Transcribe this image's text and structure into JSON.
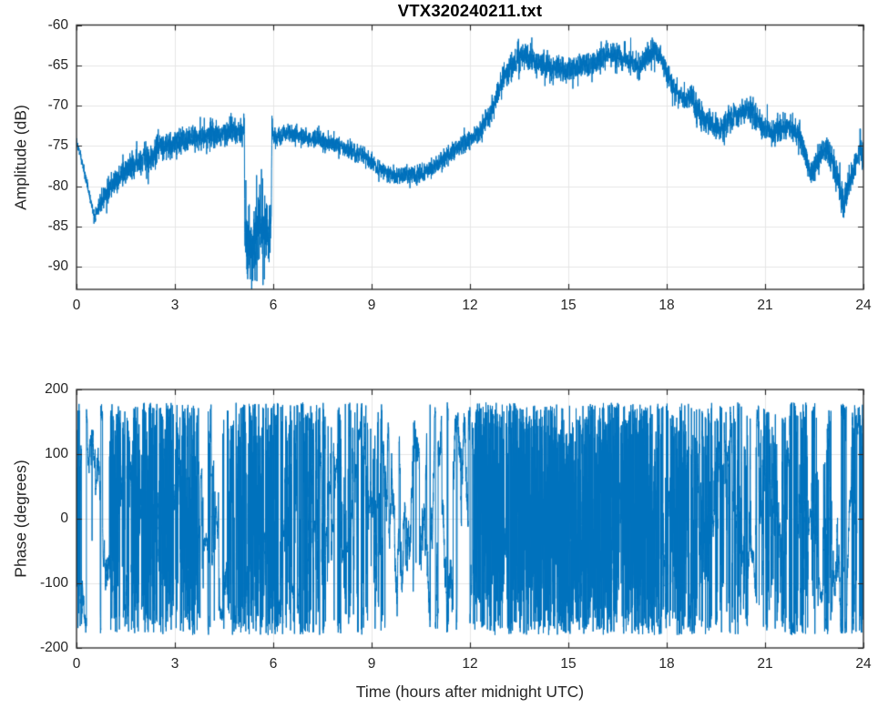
{
  "figure": {
    "background": "#ffffff",
    "axis_color": "#262626",
    "grid_color": "#e6e6e6",
    "tick_label_color": "#262626"
  },
  "chart_data": [
    {
      "type": "line",
      "title": "VTX320240211.txt",
      "xlabel": "",
      "ylabel": "Amplitude (dB)",
      "xlim": [
        0,
        24
      ],
      "ylim": [
        -92.8,
        -60
      ],
      "xticks": [
        0,
        3,
        6,
        9,
        12,
        15,
        18,
        21,
        24
      ],
      "yticks": [
        -90,
        -85,
        -80,
        -75,
        -70,
        -65,
        -60
      ],
      "grid": true,
      "legend": "none",
      "line_color": "#0072BD",
      "series": [
        {
          "name": "amplitude",
          "samples": 6000,
          "envelope": [
            [
              0,
              -74.5
            ],
            [
              0.15,
              -76.5
            ],
            [
              0.35,
              -80.2
            ],
            [
              0.55,
              -84.0
            ],
            [
              0.75,
              -82.0
            ],
            [
              1.0,
              -80.2
            ],
            [
              1.3,
              -78.9
            ],
            [
              1.65,
              -77.8
            ],
            [
              2.0,
              -76.8
            ],
            [
              2.35,
              -76.0
            ],
            [
              2.7,
              -74.9
            ],
            [
              3.1,
              -74.5
            ],
            [
              3.5,
              -74.1
            ],
            [
              4.0,
              -73.8
            ],
            [
              4.5,
              -73.6
            ],
            [
              5.09,
              -73.3
            ],
            [
              5.105,
              -71.4
            ],
            [
              5.12,
              -73.5
            ],
            [
              5.135,
              -86.0
            ],
            [
              5.3,
              -87.6
            ],
            [
              5.5,
              -87.0
            ],
            [
              5.62,
              -84.6
            ],
            [
              5.8,
              -85.2
            ],
            [
              5.94,
              -84.5
            ],
            [
              5.96,
              -72.6
            ],
            [
              6.02,
              -74.0
            ],
            [
              6.5,
              -73.4
            ],
            [
              7.0,
              -73.9
            ],
            [
              7.5,
              -74.3
            ],
            [
              8.1,
              -75.1
            ],
            [
              8.7,
              -76.1
            ],
            [
              9.2,
              -77.8
            ],
            [
              9.8,
              -78.8
            ],
            [
              10.3,
              -78.6
            ],
            [
              10.85,
              -77.9
            ],
            [
              11.4,
              -75.9
            ],
            [
              11.8,
              -74.7
            ],
            [
              12.1,
              -74.1
            ],
            [
              12.35,
              -73.0
            ],
            [
              12.55,
              -71.5
            ],
            [
              12.75,
              -69.6
            ],
            [
              12.9,
              -67.8
            ],
            [
              13.1,
              -66.0
            ],
            [
              13.3,
              -64.8
            ],
            [
              13.55,
              -63.9
            ],
            [
              13.8,
              -64.2
            ],
            [
              14.0,
              -64.5
            ],
            [
              14.5,
              -65.3
            ],
            [
              15.05,
              -65.6
            ],
            [
              15.6,
              -65.0
            ],
            [
              16.15,
              -64.0
            ],
            [
              16.45,
              -63.6
            ],
            [
              16.8,
              -64.4
            ],
            [
              17.15,
              -65.2
            ],
            [
              17.4,
              -63.9
            ],
            [
              17.65,
              -63.3
            ],
            [
              17.8,
              -63.8
            ],
            [
              18.0,
              -66.0
            ],
            [
              18.3,
              -68.3
            ],
            [
              18.55,
              -69.3
            ],
            [
              18.75,
              -68.9
            ],
            [
              19.0,
              -71.0
            ],
            [
              19.3,
              -72.2
            ],
            [
              19.6,
              -73.0
            ],
            [
              19.9,
              -71.7
            ],
            [
              20.2,
              -70.9
            ],
            [
              20.45,
              -70.6
            ],
            [
              20.7,
              -71.3
            ],
            [
              21.0,
              -72.6
            ],
            [
              21.2,
              -73.4
            ],
            [
              21.45,
              -72.7
            ],
            [
              21.7,
              -72.5
            ],
            [
              21.9,
              -73.1
            ],
            [
              22.1,
              -74.3
            ],
            [
              22.4,
              -78.8
            ],
            [
              22.65,
              -76.6
            ],
            [
              22.85,
              -75.2
            ],
            [
              23.05,
              -76.6
            ],
            [
              23.2,
              -79.3
            ],
            [
              23.4,
              -82.4
            ],
            [
              23.6,
              -79.2
            ],
            [
              23.8,
              -76.4
            ],
            [
              23.92,
              -74.9
            ],
            [
              24,
              -77.2
            ]
          ],
          "noise_halfwidth": [
            [
              0,
              0.35
            ],
            [
              0.5,
              0.3
            ],
            [
              0.9,
              0.75
            ],
            [
              2.5,
              0.85
            ],
            [
              5.05,
              0.8
            ],
            [
              5.1,
              0.5
            ],
            [
              5.15,
              2.7
            ],
            [
              5.9,
              2.3
            ],
            [
              5.96,
              0.6
            ],
            [
              6.1,
              0.55
            ],
            [
              12.3,
              0.6
            ],
            [
              13.2,
              0.85
            ],
            [
              17.9,
              0.75
            ],
            [
              19,
              0.8
            ],
            [
              21.9,
              0.85
            ],
            [
              22.6,
              0.8
            ],
            [
              23.3,
              1.0
            ],
            [
              24,
              0.9
            ]
          ],
          "spikes": [
            {
              "t0": 0.9,
              "t1": 5.1,
              "p": 0.012,
              "amp": [
                0.8,
                2.3
              ]
            },
            {
              "t0": 0.9,
              "t1": 5.1,
              "p": 0.004,
              "amp": [
                -1.3,
                -0.5
              ]
            },
            {
              "t0": 6.1,
              "t1": 12.3,
              "p": 0.006,
              "amp": [
                0.4,
                1.2
              ]
            },
            {
              "t0": 13.2,
              "t1": 17.9,
              "p": 0.009,
              "amp": [
                0.6,
                1.6
              ]
            },
            {
              "t0": 13.2,
              "t1": 17.9,
              "p": 0.009,
              "amp": [
                -1.6,
                -0.6
              ]
            },
            {
              "t0": 19.8,
              "t1": 22.0,
              "p": 0.016,
              "amp": [
                0.8,
                2.2
              ]
            },
            {
              "t0": 22.0,
              "t1": 24.0,
              "p": 0.012,
              "amp": [
                0.6,
                1.8
              ]
            }
          ],
          "notes": "Noisy received-signal amplitude; deep dropout 5.1-5.95 h to ~-87 dB (min ~-91.5); high plateau ~-64 dB from 13-18 h; dips to ~-79 dB at 22.4 h and ~-82.5 dB at 23.4 h"
        }
      ]
    },
    {
      "type": "line",
      "title": "",
      "xlabel": "Time (hours after midnight UTC)",
      "ylabel": "Phase (degrees)",
      "xlim": [
        0,
        24
      ],
      "ylim": [
        -200,
        200
      ],
      "xticks": [
        0,
        3,
        6,
        9,
        12,
        15,
        18,
        21,
        24
      ],
      "yticks": [
        -200,
        -100,
        0,
        100,
        200
      ],
      "grid": true,
      "legend": "none",
      "line_color": "#0072BD",
      "series": [
        {
          "name": "phase",
          "samples": 9000,
          "wrap_range": [
            -180,
            180
          ],
          "segments": [
            {
              "t0": 0.0,
              "t1": 0.12,
              "sigma": 130,
              "gap": 0.0,
              "drift": 0,
              "burst": 0
            },
            {
              "t0": 0.12,
              "t1": 1.0,
              "sigma": 9,
              "gap": 0.0,
              "drift": -380,
              "burst": 0.004
            },
            {
              "t0": 1.0,
              "t1": 3.65,
              "sigma": 120,
              "gap": 0.12,
              "drift": 0,
              "burst": 0
            },
            {
              "t0": 3.65,
              "t1": 4.5,
              "sigma": 45,
              "gap": 0.3,
              "drift": 0,
              "burst": 0
            },
            {
              "t0": 4.5,
              "t1": 5.15,
              "sigma": 90,
              "gap": 0.15,
              "drift": 0,
              "burst": 0
            },
            {
              "t0": 5.15,
              "t1": 6.15,
              "sigma": 120,
              "gap": 0.08,
              "drift": 0,
              "burst": 0
            },
            {
              "t0": 6.15,
              "t1": 7.4,
              "sigma": 60,
              "gap": 0.3,
              "drift": 0,
              "burst": 0
            },
            {
              "t0": 7.4,
              "t1": 9.35,
              "sigma": 55,
              "gap": 0.35,
              "drift": 0,
              "burst": 0
            },
            {
              "t0": 9.35,
              "t1": 12.1,
              "sigma": 14,
              "gap": 0.0,
              "drift": 0,
              "burst": 0.012
            },
            {
              "t0": 12.1,
              "t1": 17.65,
              "sigma": 165,
              "gap": 0.02,
              "drift": 0,
              "burst": 0
            },
            {
              "t0": 17.65,
              "t1": 18.6,
              "sigma": 110,
              "gap": 0.1,
              "drift": 0,
              "burst": 0
            },
            {
              "t0": 18.6,
              "t1": 20.6,
              "sigma": 70,
              "gap": 0.25,
              "drift": 0,
              "burst": 0
            },
            {
              "t0": 20.6,
              "t1": 23.05,
              "sigma": 55,
              "gap": 0.3,
              "drift": 0,
              "burst": 0
            },
            {
              "t0": 23.05,
              "t1": 23.65,
              "sigma": 12,
              "gap": 0.0,
              "drift": 0,
              "burst": 0.008
            },
            {
              "t0": 23.65,
              "t1": 24.01,
              "sigma": 85,
              "gap": 0.15,
              "drift": 0,
              "burst": 0
            }
          ],
          "notes": "Wrapped phase +/-180 deg; dense full-range hash 12.1-17.65 h; coherent wander 0.1-1.0 h, 9.35-12.1 h and 23.05-23.65 h"
        }
      ]
    }
  ]
}
